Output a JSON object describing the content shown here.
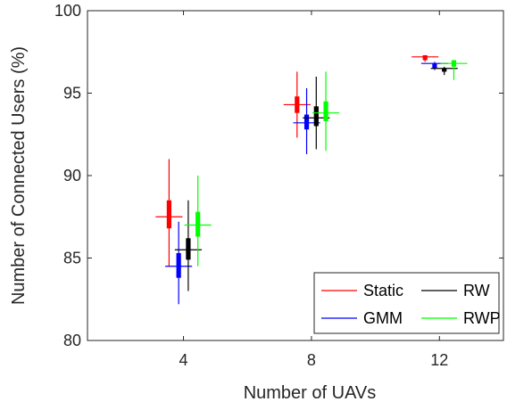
{
  "chart_data": {
    "type": "scatter",
    "xlabel": "Number of UAVs",
    "ylabel": "Number of Connected Users (%)",
    "ylim": [
      80,
      100
    ],
    "yticks": [
      80,
      85,
      90,
      95,
      100
    ],
    "xlim": [
      1,
      14
    ],
    "xticks": [
      4,
      8,
      12
    ],
    "xtick_labels": [
      "4",
      "8",
      "12"
    ],
    "grid": false,
    "legend_position": "bottom-right",
    "groups": [
      4,
      8,
      12
    ],
    "series": [
      {
        "name": "Static",
        "color": "#ff0000",
        "points": [
          {
            "x": 4,
            "mean": 87.5,
            "box": [
              86.8,
              88.5
            ],
            "range": [
              84.5,
              91.0
            ]
          },
          {
            "x": 8,
            "mean": 94.3,
            "box": [
              93.8,
              94.8
            ],
            "range": [
              92.3,
              96.3
            ]
          },
          {
            "x": 12,
            "mean": 97.2,
            "box": [
              97.0,
              97.3
            ],
            "range": [
              96.9,
              97.3
            ]
          }
        ]
      },
      {
        "name": "GMM",
        "color": "#0000ff",
        "points": [
          {
            "x": 4,
            "mean": 84.5,
            "box": [
              83.8,
              85.3
            ],
            "range": [
              82.2,
              87.2
            ]
          },
          {
            "x": 8,
            "mean": 93.2,
            "box": [
              92.8,
              93.7
            ],
            "range": [
              91.3,
              95.3
            ]
          },
          {
            "x": 12,
            "mean": 96.8,
            "box": [
              96.5,
              96.8
            ],
            "range": [
              96.4,
              96.9
            ]
          }
        ]
      },
      {
        "name": "RW",
        "color": "#000000",
        "points": [
          {
            "x": 4,
            "mean": 85.5,
            "box": [
              84.9,
              86.2
            ],
            "range": [
              83.0,
              88.5
            ]
          },
          {
            "x": 8,
            "mean": 93.5,
            "box": [
              93.0,
              94.2
            ],
            "range": [
              91.6,
              96.0
            ]
          },
          {
            "x": 12,
            "mean": 96.5,
            "box": [
              96.3,
              96.5
            ],
            "range": [
              96.1,
              96.6
            ]
          }
        ]
      },
      {
        "name": "RWP",
        "color": "#00ff00",
        "points": [
          {
            "x": 4,
            "mean": 87.0,
            "box": [
              86.3,
              87.8
            ],
            "range": [
              84.5,
              90.0
            ]
          },
          {
            "x": 8,
            "mean": 93.8,
            "box": [
              93.3,
              94.5
            ],
            "range": [
              91.5,
              96.3
            ]
          },
          {
            "x": 12,
            "mean": 96.8,
            "box": [
              96.6,
              97.0
            ],
            "range": [
              95.8,
              97.0
            ]
          }
        ]
      }
    ],
    "legend": [
      {
        "label": "Static",
        "series": 0
      },
      {
        "label": "RW",
        "series": 2
      },
      {
        "label": "GMM",
        "series": 1
      },
      {
        "label": "RWP",
        "series": 3
      }
    ]
  }
}
